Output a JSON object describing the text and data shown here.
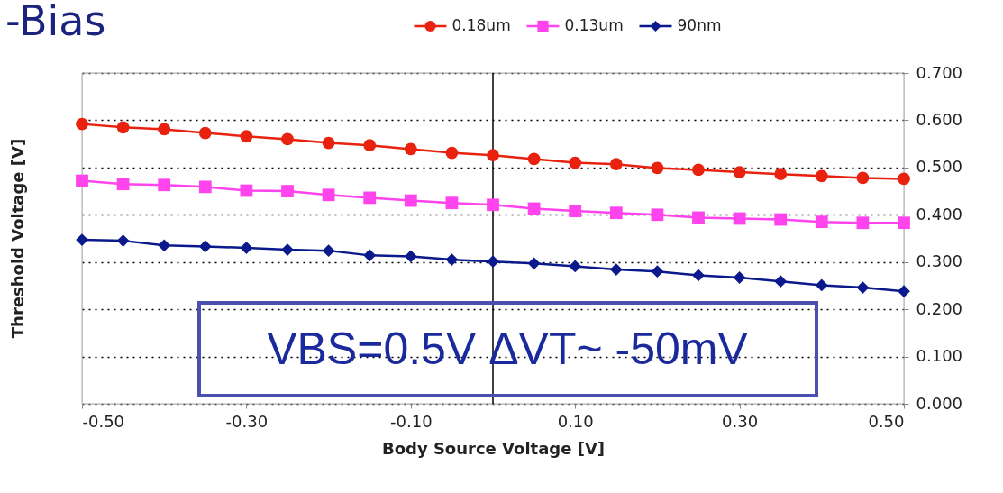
{
  "chart_data": {
    "type": "line",
    "title": "-Bias",
    "xlabel": "Body Source Voltage [V]",
    "ylabel": "Threshold Voltage [V]",
    "x": [
      -0.5,
      -0.45,
      -0.4,
      -0.35,
      -0.3,
      -0.25,
      -0.2,
      -0.15,
      -0.1,
      -0.05,
      0,
      0.05,
      0.1,
      0.15,
      0.2,
      0.25,
      0.3,
      0.35,
      0.4,
      0.45,
      0.5
    ],
    "series": [
      {
        "name": "0.18um",
        "color": "#e8220e",
        "marker": "circle",
        "values": [
          0.592,
          0.585,
          0.581,
          0.573,
          0.566,
          0.56,
          0.552,
          0.547,
          0.539,
          0.531,
          0.526,
          0.518,
          0.51,
          0.507,
          0.499,
          0.495,
          0.49,
          0.486,
          0.482,
          0.478,
          0.476
        ]
      },
      {
        "name": "0.13um",
        "color": "#ff44ee",
        "marker": "square",
        "values": [
          0.472,
          0.465,
          0.463,
          0.459,
          0.451,
          0.45,
          0.442,
          0.436,
          0.43,
          0.425,
          0.421,
          0.413,
          0.408,
          0.404,
          0.4,
          0.394,
          0.392,
          0.39,
          0.385,
          0.383,
          0.383
        ]
      },
      {
        "name": "90nm",
        "color": "#0a1a8c",
        "marker": "diamond",
        "values": [
          0.347,
          0.345,
          0.335,
          0.333,
          0.33,
          0.326,
          0.324,
          0.314,
          0.312,
          0.305,
          0.301,
          0.297,
          0.291,
          0.284,
          0.28,
          0.272,
          0.267,
          0.259,
          0.251,
          0.246,
          0.238
        ]
      }
    ],
    "xlim": [
      -0.5,
      0.5
    ],
    "xticks": [
      {
        "value": -0.5,
        "label": "-0.50"
      },
      {
        "value": -0.3,
        "label": "-0.30"
      },
      {
        "value": -0.1,
        "label": "-0.10"
      },
      {
        "value": 0.1,
        "label": "0.10"
      },
      {
        "value": 0.3,
        "label": "0.30"
      },
      {
        "value": 0.5,
        "label": "0.50"
      }
    ],
    "ylim": [
      0,
      0.7
    ],
    "yticks": [
      {
        "value": 0,
        "label": "0.000"
      },
      {
        "value": 0.1,
        "label": "0.100"
      },
      {
        "value": 0.2,
        "label": "0.200"
      },
      {
        "value": 0.3,
        "label": "0.300"
      },
      {
        "value": 0.4,
        "label": "0.400"
      },
      {
        "value": 0.5,
        "label": "0.500"
      },
      {
        "value": 0.6,
        "label": "0.600"
      },
      {
        "value": 0.7,
        "label": "0.700"
      }
    ],
    "ref_lines": [
      {
        "axis": "x",
        "value": 0,
        "color": "#000000"
      }
    ],
    "grid": "y",
    "legend": "top",
    "line_style": "solid",
    "annotations": [
      "VBS=0.5V ΔVT~ -50mV"
    ]
  }
}
